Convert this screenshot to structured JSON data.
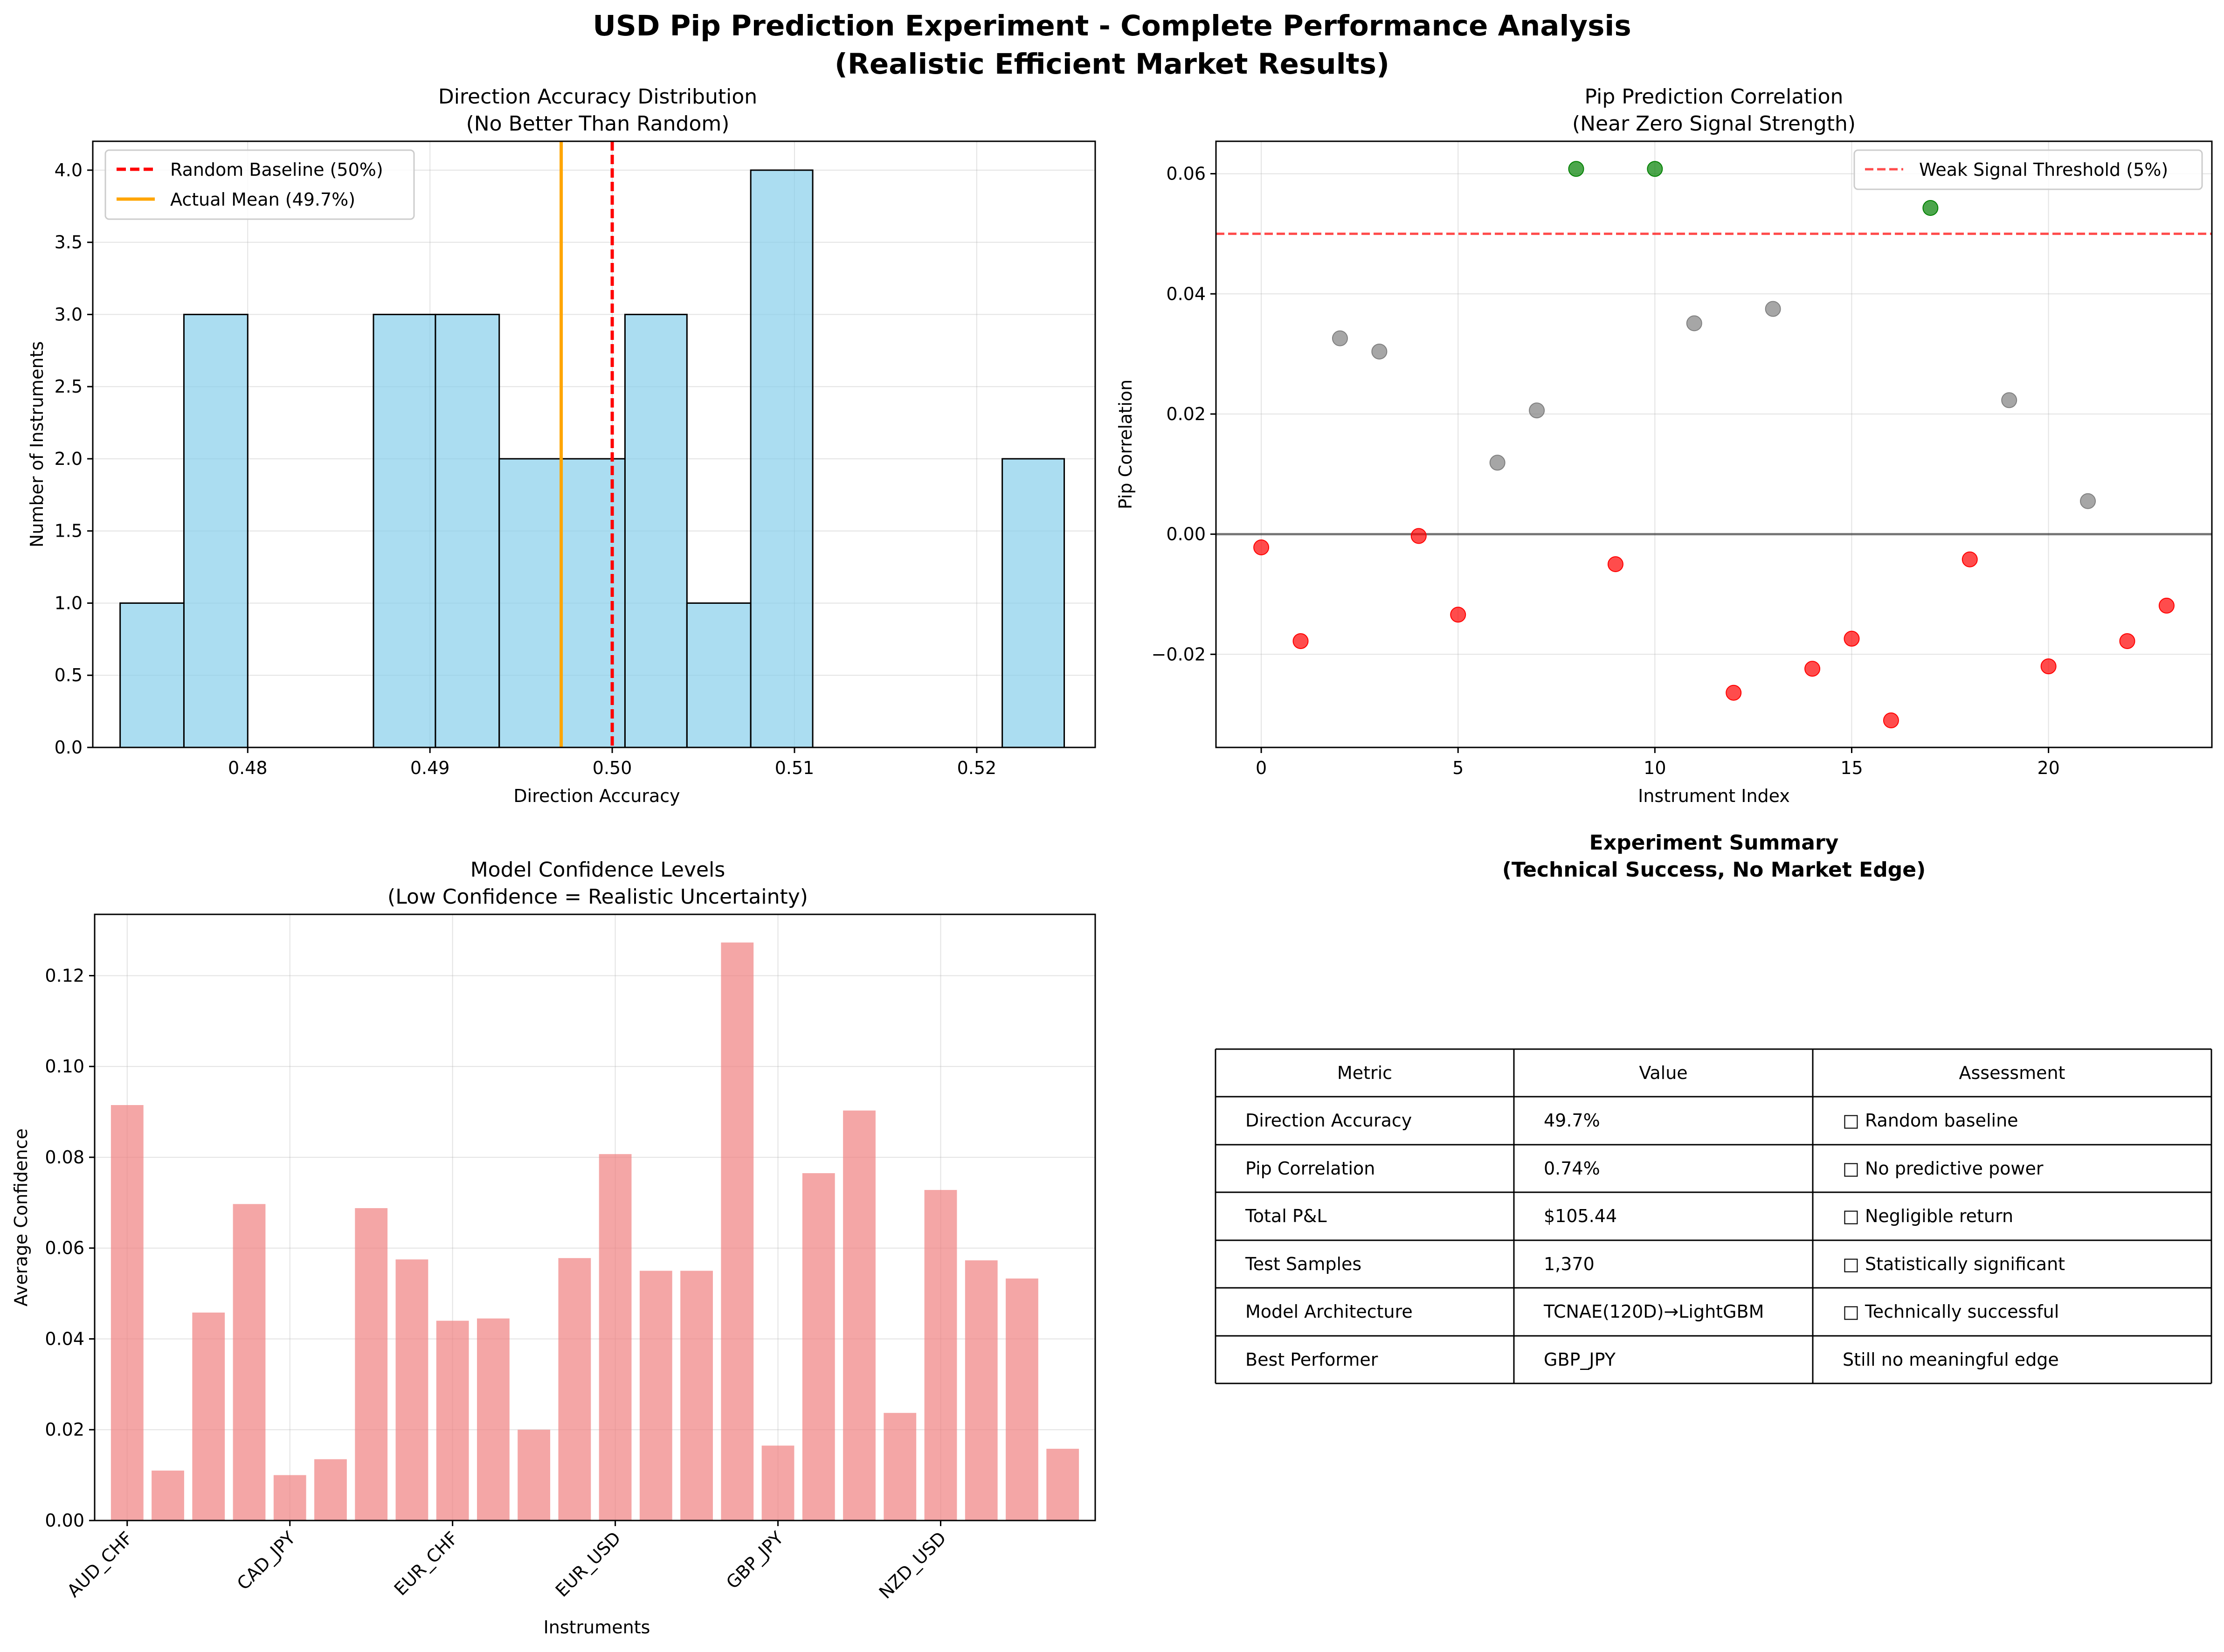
{
  "figure": {
    "title_line1": "USD Pip Prediction Experiment - Complete Performance Analysis",
    "title_line2": "(Realistic Efficient Market Results)"
  },
  "chart_data": [
    {
      "type": "bar",
      "chart_kind": "histogram",
      "title": "Direction Accuracy Distribution",
      "subtitle": "(No Better Than Random)",
      "xlabel": "Direction Accuracy",
      "ylabel": "Number of Instruments",
      "xlim": [
        0.4715,
        0.5265
      ],
      "ylim": [
        0,
        4.2
      ],
      "xticks": [
        0.48,
        0.49,
        0.5,
        0.51,
        0.52
      ],
      "xtick_labels": [
        "0.48",
        "0.49",
        "0.50",
        "0.51",
        "0.52"
      ],
      "yticks": [
        0.0,
        0.5,
        1.0,
        1.5,
        2.0,
        2.5,
        3.0,
        3.5,
        4.0
      ],
      "ytick_labels": [
        "0.0",
        "0.5",
        "1.0",
        "1.5",
        "2.0",
        "2.5",
        "3.0",
        "3.5",
        "4.0"
      ],
      "bin_edges": [
        0.473,
        0.4765,
        0.48,
        0.4834,
        0.4869,
        0.4903,
        0.4938,
        0.4972,
        0.5007,
        0.5041,
        0.5076,
        0.511,
        0.5145,
        0.5179,
        0.5214,
        0.5248
      ],
      "counts": [
        1,
        3,
        0,
        0,
        3,
        3,
        2,
        2,
        3,
        1,
        4,
        0,
        0,
        0,
        2
      ],
      "bar_color": "#87ceeb",
      "reference_lines": [
        {
          "label": "Random Baseline (50%)",
          "x": 0.5,
          "color": "#ff0000",
          "style": "dashed"
        },
        {
          "label": "Actual Mean (49.7%)",
          "x": 0.4972,
          "color": "#ffa500",
          "style": "solid"
        }
      ]
    },
    {
      "type": "scatter",
      "title": "Pip Prediction Correlation",
      "subtitle": "(Near Zero Signal Strength)",
      "xlabel": "Instrument Index",
      "ylabel": "Pip Correlation",
      "xlim": [
        -1.15,
        24.15
      ],
      "ylim": [
        -0.0355,
        0.0654
      ],
      "xticks": [
        0,
        5,
        10,
        15,
        20
      ],
      "xtick_labels": [
        "0",
        "5",
        "10",
        "15",
        "20"
      ],
      "yticks": [
        -0.02,
        0.0,
        0.02,
        0.04,
        0.06
      ],
      "ytick_labels": [
        "−0.02",
        "0.00",
        "0.02",
        "0.04",
        "0.06"
      ],
      "x": [
        0,
        1,
        2,
        3,
        4,
        5,
        6,
        7,
        8,
        9,
        10,
        11,
        12,
        13,
        14,
        15,
        16,
        17,
        18,
        19,
        20,
        21,
        22,
        23
      ],
      "y": [
        -0.0022,
        -0.0178,
        0.0326,
        0.0304,
        -0.0003,
        -0.0134,
        0.0119,
        0.0206,
        0.0608,
        -0.005,
        0.0608,
        0.0351,
        -0.0264,
        0.0375,
        -0.0224,
        -0.0174,
        -0.031,
        0.0543,
        -0.0042,
        0.0223,
        -0.022,
        0.0055,
        -0.0178,
        -0.0119
      ],
      "color_rule": {
        "above_threshold": "#008000",
        "negative": "#ff0000",
        "other": "#808080"
      },
      "threshold_line": {
        "label": "Weak Signal Threshold (5%)",
        "y": 0.05,
        "color": "#ff0000",
        "style": "dashed"
      },
      "zero_line": {
        "y": 0.0,
        "color": "#000000"
      }
    },
    {
      "type": "bar",
      "title": "Model Confidence Levels",
      "subtitle": "(Low Confidence = Realistic Uncertainty)",
      "xlabel": "Instruments",
      "ylabel": "Average Confidence",
      "ylim": [
        0,
        0.1335
      ],
      "yticks": [
        0.0,
        0.02,
        0.04,
        0.06,
        0.08,
        0.1,
        0.12
      ],
      "ytick_labels": [
        "0.00",
        "0.02",
        "0.04",
        "0.06",
        "0.08",
        "0.10",
        "0.12"
      ],
      "values": [
        0.0915,
        0.011,
        0.0458,
        0.0697,
        0.01,
        0.0135,
        0.0688,
        0.0575,
        0.044,
        0.0445,
        0.02,
        0.0578,
        0.0807,
        0.055,
        0.055,
        0.1273,
        0.0165,
        0.0765,
        0.0903,
        0.0237,
        0.0728,
        0.0573,
        0.0533,
        0.0158
      ],
      "visible_tick_indices": [
        0,
        4,
        8,
        12,
        16,
        20
      ],
      "visible_tick_labels": [
        "AUD_CHF",
        "CAD_JPY",
        "EUR_CHF",
        "EUR_USD",
        "GBP_JPY",
        "NZD_USD"
      ],
      "bar_color": "#f08080"
    },
    {
      "type": "table",
      "title": "Experiment Summary",
      "subtitle": "(Technical Success, No Market Edge)",
      "columns": [
        "Metric",
        "Value",
        "Assessment"
      ],
      "rows": [
        [
          "Direction Accuracy",
          "49.7%",
          "□ Random baseline"
        ],
        [
          "Pip Correlation",
          "0.74%",
          "□ No predictive power"
        ],
        [
          "Total P&L",
          "$105.44",
          "□ Negligible return"
        ],
        [
          "Test Samples",
          "1,370",
          "□ Statistically significant"
        ],
        [
          "Model Architecture",
          "TCNAE(120D)→LightGBM",
          "□ Technically successful"
        ],
        [
          "Best Performer",
          "GBP_JPY",
          "Still no meaningful edge"
        ]
      ]
    }
  ]
}
